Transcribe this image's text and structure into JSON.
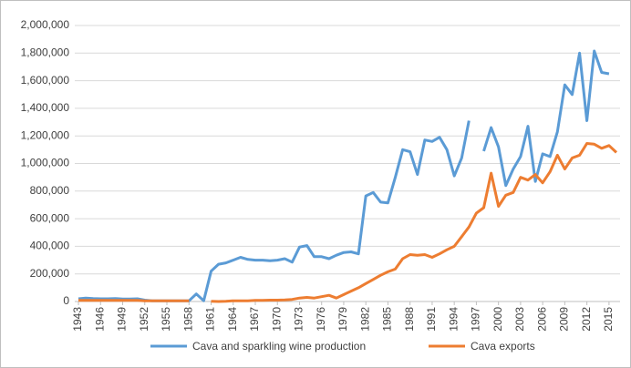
{
  "chart_data": {
    "type": "line",
    "x": [
      1943,
      1944,
      1945,
      1946,
      1947,
      1948,
      1949,
      1950,
      1951,
      1952,
      1953,
      1954,
      1955,
      1956,
      1957,
      1958,
      1959,
      1960,
      1961,
      1962,
      1963,
      1964,
      1965,
      1966,
      1967,
      1968,
      1969,
      1970,
      1971,
      1972,
      1973,
      1974,
      1975,
      1976,
      1977,
      1978,
      1979,
      1980,
      1981,
      1982,
      1983,
      1984,
      1985,
      1986,
      1987,
      1988,
      1989,
      1990,
      1991,
      1992,
      1993,
      1994,
      1995,
      1996,
      1997,
      1998,
      1999,
      2000,
      2001,
      2002,
      2003,
      2004,
      2005,
      2006,
      2007,
      2008,
      2009,
      2010,
      2011,
      2012,
      2013,
      2014,
      2015,
      2016
    ],
    "xlim": [
      1942.5,
      2016.5
    ],
    "xticks": [
      1943,
      1946,
      1949,
      1952,
      1955,
      1958,
      1961,
      1964,
      1967,
      1970,
      1973,
      1976,
      1979,
      1982,
      1985,
      1988,
      1991,
      1994,
      1997,
      2000,
      2003,
      2006,
      2009,
      2012,
      2015
    ],
    "ylim": [
      0,
      2000000
    ],
    "yticks": [
      0,
      {
        "value": 200000,
        "label": "200,000"
      },
      {
        "value": 400000,
        "label": "400,000"
      },
      {
        "value": 600000,
        "label": "600,000"
      },
      {
        "value": 800000,
        "label": "800,000"
      },
      {
        "value": 1000000,
        "label": "1,000,000"
      },
      {
        "value": 1200000,
        "label": "1,200,000"
      },
      {
        "value": 1400000,
        "label": "1,400,000"
      },
      {
        "value": 1600000,
        "label": "1,600,000"
      },
      {
        "value": 1800000,
        "label": "1,800,000"
      },
      {
        "value": 2000000,
        "label": "2,000,000"
      }
    ],
    "grid": true,
    "legend": "bottom",
    "series": [
      {
        "name": "Cava and sparkling wine production",
        "color": "#5b9bd5",
        "values": [
          20000,
          25000,
          22000,
          20000,
          20000,
          22000,
          18000,
          18000,
          20000,
          10000,
          5000,
          5000,
          5000,
          5000,
          5000,
          5000,
          55000,
          5000,
          220000,
          270000,
          280000,
          300000,
          320000,
          305000,
          300000,
          300000,
          295000,
          300000,
          310000,
          285000,
          395000,
          405000,
          325000,
          325000,
          310000,
          335000,
          355000,
          360000,
          345000,
          765000,
          790000,
          720000,
          715000,
          900000,
          1100000,
          1085000,
          920000,
          1170000,
          1160000,
          1190000,
          1100000,
          910000,
          1040000,
          1310000,
          null,
          1090000,
          1260000,
          1120000,
          840000,
          960000,
          1050000,
          1270000,
          870000,
          1070000,
          1050000,
          1230000,
          1570000,
          1500000,
          1800000,
          1310000,
          1815000,
          1660000,
          1650000,
          null
        ]
      },
      {
        "name": "Cava exports",
        "color": "#ed7d31",
        "values": [
          8000,
          8000,
          8000,
          8000,
          8000,
          8000,
          8000,
          8000,
          8000,
          5000,
          5000,
          5000,
          5000,
          5000,
          5000,
          5000,
          null,
          null,
          2000,
          0,
          2000,
          5000,
          5000,
          5000,
          8000,
          8000,
          10000,
          10000,
          12000,
          15000,
          25000,
          30000,
          25000,
          35000,
          45000,
          25000,
          50000,
          75000,
          100000,
          130000,
          160000,
          190000,
          215000,
          235000,
          310000,
          340000,
          335000,
          340000,
          320000,
          345000,
          375000,
          400000,
          470000,
          540000,
          640000,
          680000,
          930000,
          690000,
          770000,
          790000,
          900000,
          880000,
          920000,
          860000,
          940000,
          1060000,
          960000,
          1040000,
          1060000,
          1145000,
          1140000,
          1110000,
          1130000,
          1080000
        ]
      }
    ]
  }
}
